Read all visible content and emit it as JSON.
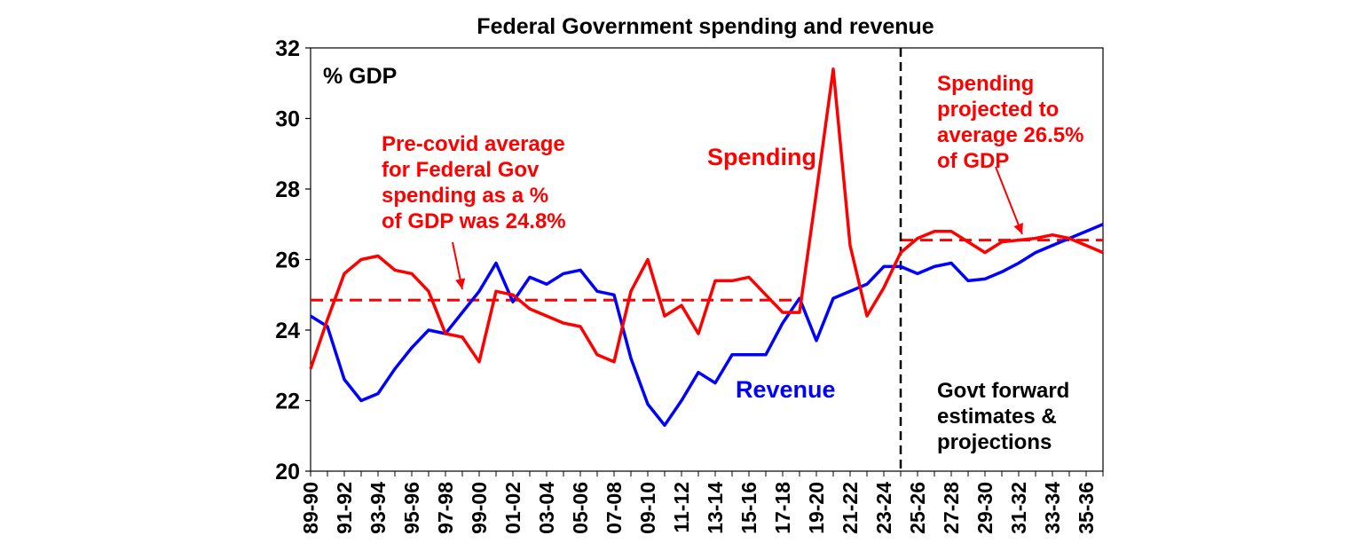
{
  "chart_data": {
    "type": "line",
    "title": "Federal Government spending and revenue",
    "ylabel": "% GDP",
    "ylim": [
      20,
      32
    ],
    "yticks": [
      20,
      22,
      24,
      26,
      28,
      30,
      32
    ],
    "grid": false,
    "categories": [
      "89-90",
      "90-91",
      "91-92",
      "92-93",
      "93-94",
      "94-95",
      "95-96",
      "96-97",
      "97-98",
      "98-99",
      "99-00",
      "00-01",
      "01-02",
      "02-03",
      "03-04",
      "04-05",
      "05-06",
      "06-07",
      "07-08",
      "08-09",
      "09-10",
      "10-11",
      "11-12",
      "12-13",
      "13-14",
      "14-15",
      "15-16",
      "16-17",
      "17-18",
      "18-19",
      "19-20",
      "20-21",
      "21-22",
      "22-23",
      "23-24",
      "24-25",
      "25-26",
      "26-27",
      "27-28",
      "28-29",
      "29-30",
      "30-31",
      "31-32",
      "32-33",
      "33-34",
      "34-35",
      "35-36",
      "36-37"
    ],
    "tick_labels": [
      "89-90",
      "91-92",
      "93-94",
      "95-96",
      "97-98",
      "99-00",
      "01-02",
      "03-04",
      "05-06",
      "07-08",
      "09-10",
      "11-12",
      "13-14",
      "15-16",
      "17-18",
      "19-20",
      "21-22",
      "23-24",
      "25-26",
      "27-28",
      "29-30",
      "31-32",
      "33-34",
      "35-36"
    ],
    "series": [
      {
        "name": "Spending",
        "color": "#ff0000",
        "values": [
          22.9,
          24.3,
          25.6,
          26.0,
          26.1,
          25.7,
          25.6,
          25.1,
          23.9,
          23.8,
          23.1,
          25.1,
          25.0,
          24.6,
          24.4,
          24.2,
          24.1,
          23.3,
          23.1,
          25.1,
          26.0,
          24.4,
          24.7,
          23.9,
          25.4,
          25.4,
          25.5,
          25.0,
          24.5,
          24.5,
          27.9,
          31.4,
          26.4,
          24.4,
          25.2,
          26.2,
          26.6,
          26.8,
          26.8,
          26.5,
          26.2,
          26.5,
          26.55,
          26.6,
          26.7,
          26.6,
          26.4,
          26.2
        ]
      },
      {
        "name": "Revenue",
        "color": "#0000ff",
        "values": [
          24.4,
          24.1,
          22.6,
          22.0,
          22.2,
          22.9,
          23.5,
          24.0,
          23.9,
          24.5,
          25.1,
          25.9,
          24.8,
          25.5,
          25.3,
          25.6,
          25.7,
          25.1,
          25.0,
          23.2,
          21.9,
          21.3,
          22.0,
          22.8,
          22.5,
          23.3,
          23.3,
          23.3,
          24.2,
          24.9,
          23.7,
          24.9,
          25.1,
          25.3,
          25.8,
          25.8,
          25.6,
          25.8,
          25.9,
          25.4,
          25.45,
          25.65,
          25.9,
          26.2,
          26.4,
          26.6,
          26.8,
          27.0
        ]
      }
    ],
    "reference_lines": [
      {
        "value": 24.85,
        "from": "89-90",
        "to": "18-19",
        "color": "#ff0000",
        "style": "dashed"
      },
      {
        "value": 26.55,
        "from": "24-25",
        "to": "36-37",
        "color": "#ff0000",
        "style": "dashed"
      }
    ],
    "vertical_marker": {
      "at": "24-25",
      "color": "#000000",
      "style": "dashed"
    },
    "annotations": {
      "pre_covid": [
        "Pre-covid average",
        "for Federal Gov",
        "spending as a %",
        "of GDP was 24.8%"
      ],
      "projected": [
        "Spending",
        "projected to",
        "average 26.5%",
        "of GDP"
      ],
      "forward": [
        "Govt forward",
        "estimates &",
        "projections"
      ],
      "spending_label": "Spending",
      "revenue_label": "Revenue"
    }
  }
}
